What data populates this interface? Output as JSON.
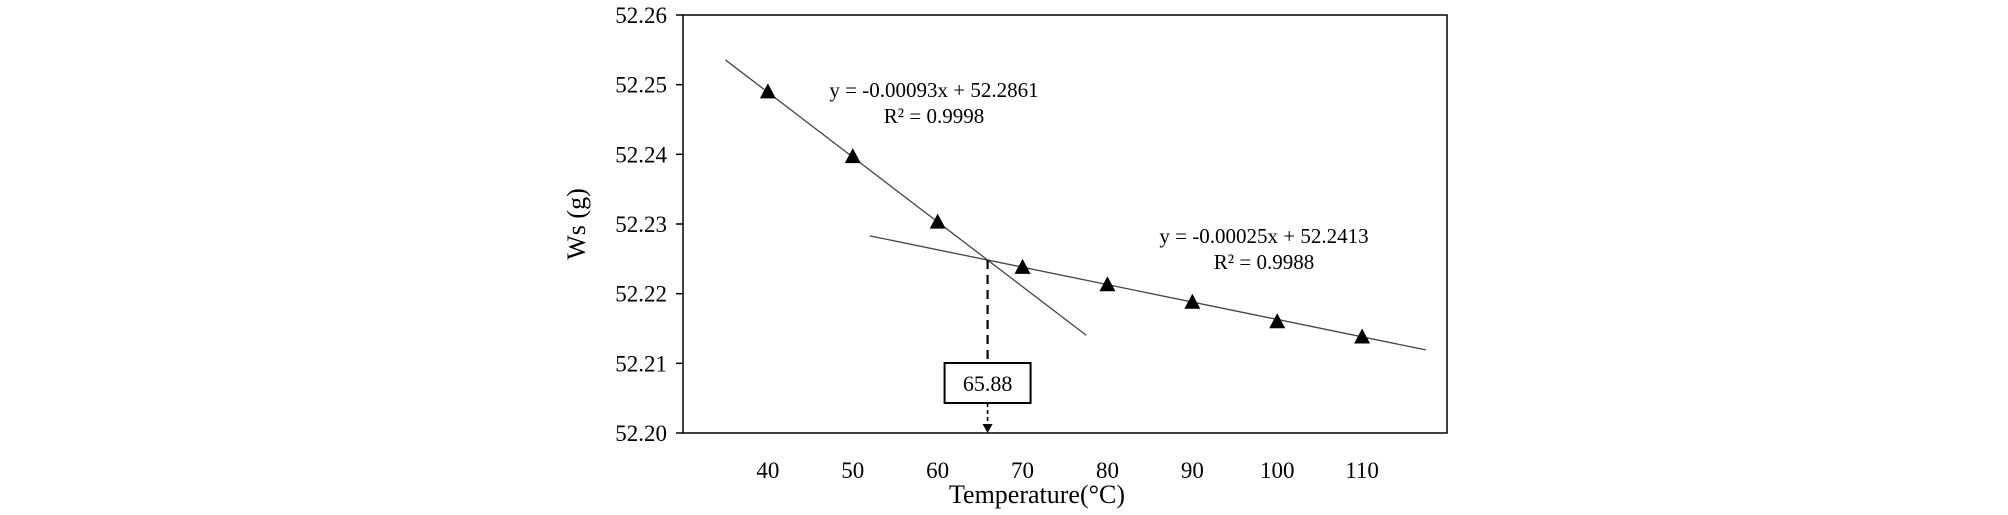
{
  "chart_data": {
    "type": "scatter",
    "title": "",
    "xlabel": "Temperature(°C)",
    "ylabel": "Ws (g)",
    "xlim": [
      30,
      120
    ],
    "ylim": [
      52.2,
      52.26
    ],
    "x_ticks": [
      40,
      50,
      60,
      70,
      80,
      90,
      100,
      110
    ],
    "x_tick_labels": [
      "40",
      "50",
      "60",
      "70",
      "80",
      "90",
      "100",
      "110"
    ],
    "y_ticks": [
      52.2,
      52.21,
      52.22,
      52.23,
      52.24,
      52.25,
      52.26
    ],
    "y_tick_labels": [
      "52.20",
      "52.21",
      "52.22",
      "52.23",
      "52.24",
      "52.25",
      "52.26"
    ],
    "grid": false,
    "marker": "triangle",
    "series": [
      {
        "x": [
          40,
          50,
          60,
          70,
          80,
          90,
          100,
          110
        ],
        "y": [
          52.2489,
          52.2396,
          52.2302,
          52.2237,
          52.2212,
          52.2187,
          52.2159,
          52.2137
        ]
      }
    ],
    "trendlines": [
      {
        "slope": -0.00093,
        "intercept": 52.2861,
        "x_range": [
          35,
          77.5
        ],
        "equation": "y = -0.00093x + 52.2861",
        "r_squared": "R² = 0.9998"
      },
      {
        "slope": -0.00025,
        "intercept": 52.2413,
        "x_range": [
          52,
          117.5
        ],
        "equation": "y = -0.00025x + 52.2413",
        "r_squared": "R² = 0.9988"
      }
    ],
    "intersection": {
      "x": 65.88,
      "label": "65.88"
    }
  }
}
